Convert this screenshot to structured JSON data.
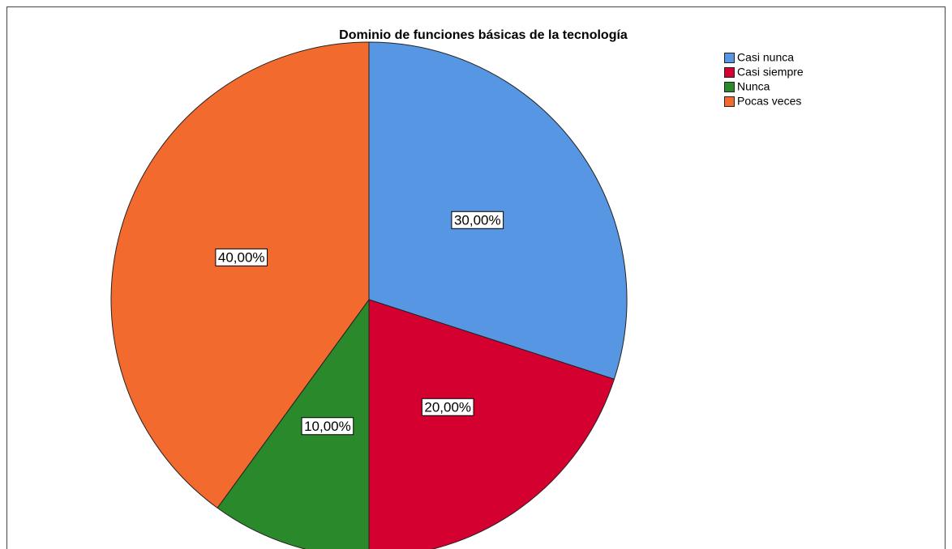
{
  "chart_data": {
    "type": "pie",
    "title": "Dominio de funciones básicas de la tecnología",
    "categories": [
      "Casi nunca",
      "Casi siempre",
      "Nunca",
      "Pocas veces"
    ],
    "values": [
      30,
      20,
      10,
      40
    ],
    "value_labels": [
      "30,00%",
      "20,00%",
      "10,00%",
      "40,00%"
    ],
    "colors": [
      "#5796e3",
      "#d40030",
      "#2a8a2b",
      "#f26a2e"
    ],
    "legend": "top-right"
  }
}
